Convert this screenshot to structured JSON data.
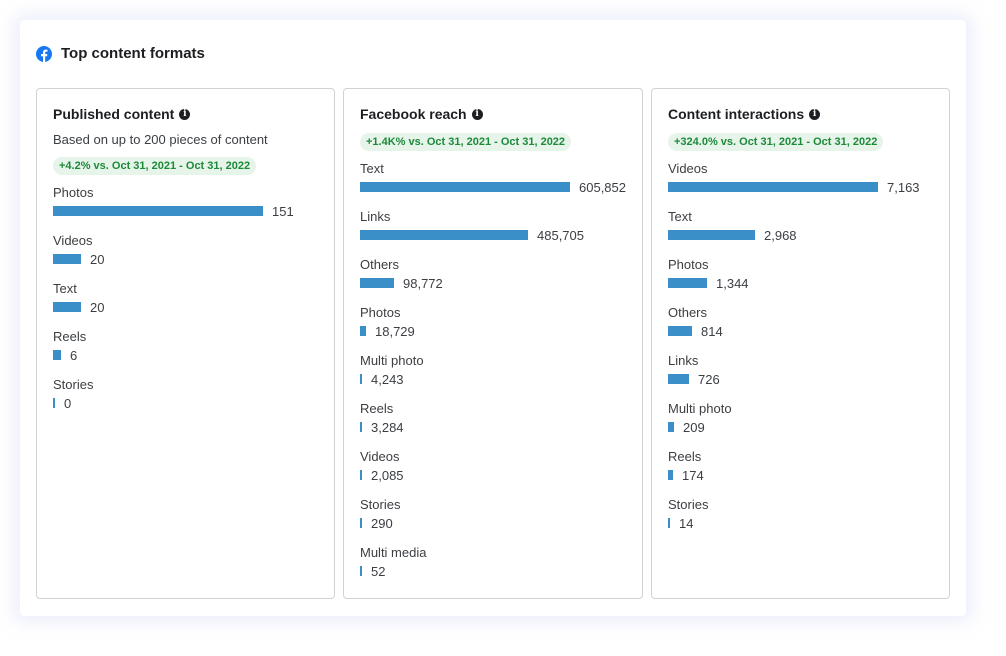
{
  "header": {
    "title": "Top content formats",
    "icon": "facebook-icon"
  },
  "colors": {
    "bar": "#3b8fc9",
    "badge_bg": "#e6f4ea",
    "badge_text": "#1d8a3a",
    "facebook_blue": "#1877f2"
  },
  "panels": [
    {
      "title": "Published content",
      "subtitle": "Based on up to 200 pieces of content",
      "badge": "+4.2% vs. Oct 31, 2021 - Oct 31, 2022",
      "max": 151,
      "rows": [
        {
          "label": "Photos",
          "display": "151",
          "value": 151
        },
        {
          "label": "Videos",
          "display": "20",
          "value": 20
        },
        {
          "label": "Text",
          "display": "20",
          "value": 20
        },
        {
          "label": "Reels",
          "display": "6",
          "value": 6
        },
        {
          "label": "Stories",
          "display": "0",
          "value": 0
        }
      ]
    },
    {
      "title": "Facebook reach",
      "subtitle": "",
      "badge": "+1.4K% vs. Oct 31, 2021 - Oct 31, 2022",
      "max": 605852,
      "rows": [
        {
          "label": "Text",
          "display": "605,852",
          "value": 605852
        },
        {
          "label": "Links",
          "display": "485,705",
          "value": 485705
        },
        {
          "label": "Others",
          "display": "98,772",
          "value": 98772
        },
        {
          "label": "Photos",
          "display": "18,729",
          "value": 18729
        },
        {
          "label": "Multi photo",
          "display": "4,243",
          "value": 4243
        },
        {
          "label": "Reels",
          "display": "3,284",
          "value": 3284
        },
        {
          "label": "Videos",
          "display": "2,085",
          "value": 2085
        },
        {
          "label": "Stories",
          "display": "290",
          "value": 290
        },
        {
          "label": "Multi media",
          "display": "52",
          "value": 52
        }
      ]
    },
    {
      "title": "Content interactions",
      "subtitle": "",
      "badge": "+324.0% vs. Oct 31, 2021 - Oct 31, 2022",
      "max": 7163,
      "rows": [
        {
          "label": "Videos",
          "display": "7,163",
          "value": 7163
        },
        {
          "label": "Text",
          "display": "2,968",
          "value": 2968
        },
        {
          "label": "Photos",
          "display": "1,344",
          "value": 1344
        },
        {
          "label": "Others",
          "display": "814",
          "value": 814
        },
        {
          "label": "Links",
          "display": "726",
          "value": 726
        },
        {
          "label": "Multi photo",
          "display": "209",
          "value": 209
        },
        {
          "label": "Reels",
          "display": "174",
          "value": 174
        },
        {
          "label": "Stories",
          "display": "14",
          "value": 14
        }
      ]
    }
  ]
}
